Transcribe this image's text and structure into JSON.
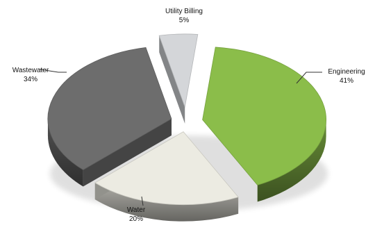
{
  "chart_data": {
    "type": "pie",
    "style": "exploded 3d",
    "legend": "none",
    "slices": [
      {
        "label": "Engineering",
        "value_label": "41%",
        "value": 41,
        "color": "#8bbd4a"
      },
      {
        "label": "Water",
        "value_label": "20%",
        "value": 20,
        "color": "#ecebe2"
      },
      {
        "label": "Wastewater",
        "value_label": "34%",
        "value": 34,
        "color": "#6d6d6d"
      },
      {
        "label": "Utility Billing",
        "value_label": "5%",
        "value": 5,
        "color": "#d4d6d9"
      }
    ]
  }
}
